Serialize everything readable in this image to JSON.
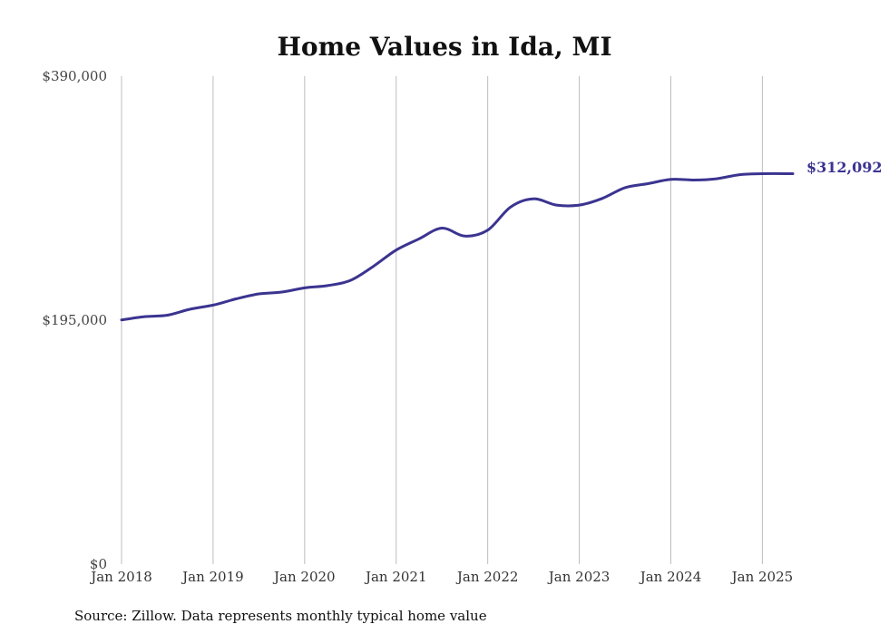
{
  "chart_data": {
    "type": "line",
    "title": "Home Values in Ida, MI",
    "xlabel": "",
    "ylabel": "",
    "ylim": [
      0,
      390000
    ],
    "yticks": [
      {
        "value": 0,
        "label": "$0"
      },
      {
        "value": 195000,
        "label": "$195,000"
      },
      {
        "value": 390000,
        "label": "$390,000"
      }
    ],
    "xticks": [
      {
        "value": 2018,
        "label": "Jan 2018"
      },
      {
        "value": 2019,
        "label": "Jan 2019"
      },
      {
        "value": 2020,
        "label": "Jan 2020"
      },
      {
        "value": 2021,
        "label": "Jan 2021"
      },
      {
        "value": 2022,
        "label": "Jan 2022"
      },
      {
        "value": 2023,
        "label": "Jan 2023"
      },
      {
        "value": 2024,
        "label": "Jan 2024"
      },
      {
        "value": 2025,
        "label": "Jan 2025"
      }
    ],
    "xlim": [
      2018,
      2025.333
    ],
    "grid": "vertical",
    "series": [
      {
        "color": "#3b3490",
        "points": [
          [
            2018.0,
            195200
          ],
          [
            2018.25,
            197800
          ],
          [
            2018.5,
            199000
          ],
          [
            2018.75,
            203800
          ],
          [
            2019.0,
            207000
          ],
          [
            2019.25,
            212000
          ],
          [
            2019.5,
            216000
          ],
          [
            2019.75,
            217500
          ],
          [
            2020.0,
            220800
          ],
          [
            2020.25,
            222600
          ],
          [
            2020.5,
            226800
          ],
          [
            2020.75,
            238000
          ],
          [
            2021.0,
            251000
          ],
          [
            2021.25,
            260000
          ],
          [
            2021.5,
            268600
          ],
          [
            2021.75,
            262200
          ],
          [
            2022.0,
            267000
          ],
          [
            2022.25,
            285500
          ],
          [
            2022.5,
            292000
          ],
          [
            2022.75,
            287000
          ],
          [
            2023.0,
            287000
          ],
          [
            2023.25,
            292300
          ],
          [
            2023.5,
            300900
          ],
          [
            2023.75,
            304100
          ],
          [
            2024.0,
            307500
          ],
          [
            2024.25,
            307000
          ],
          [
            2024.5,
            308000
          ],
          [
            2024.75,
            311300
          ],
          [
            2025.0,
            312092
          ],
          [
            2025.333,
            312092
          ]
        ]
      }
    ],
    "end_label": "$312,092",
    "source": "Source: Zillow. Data represents monthly typical home value"
  }
}
